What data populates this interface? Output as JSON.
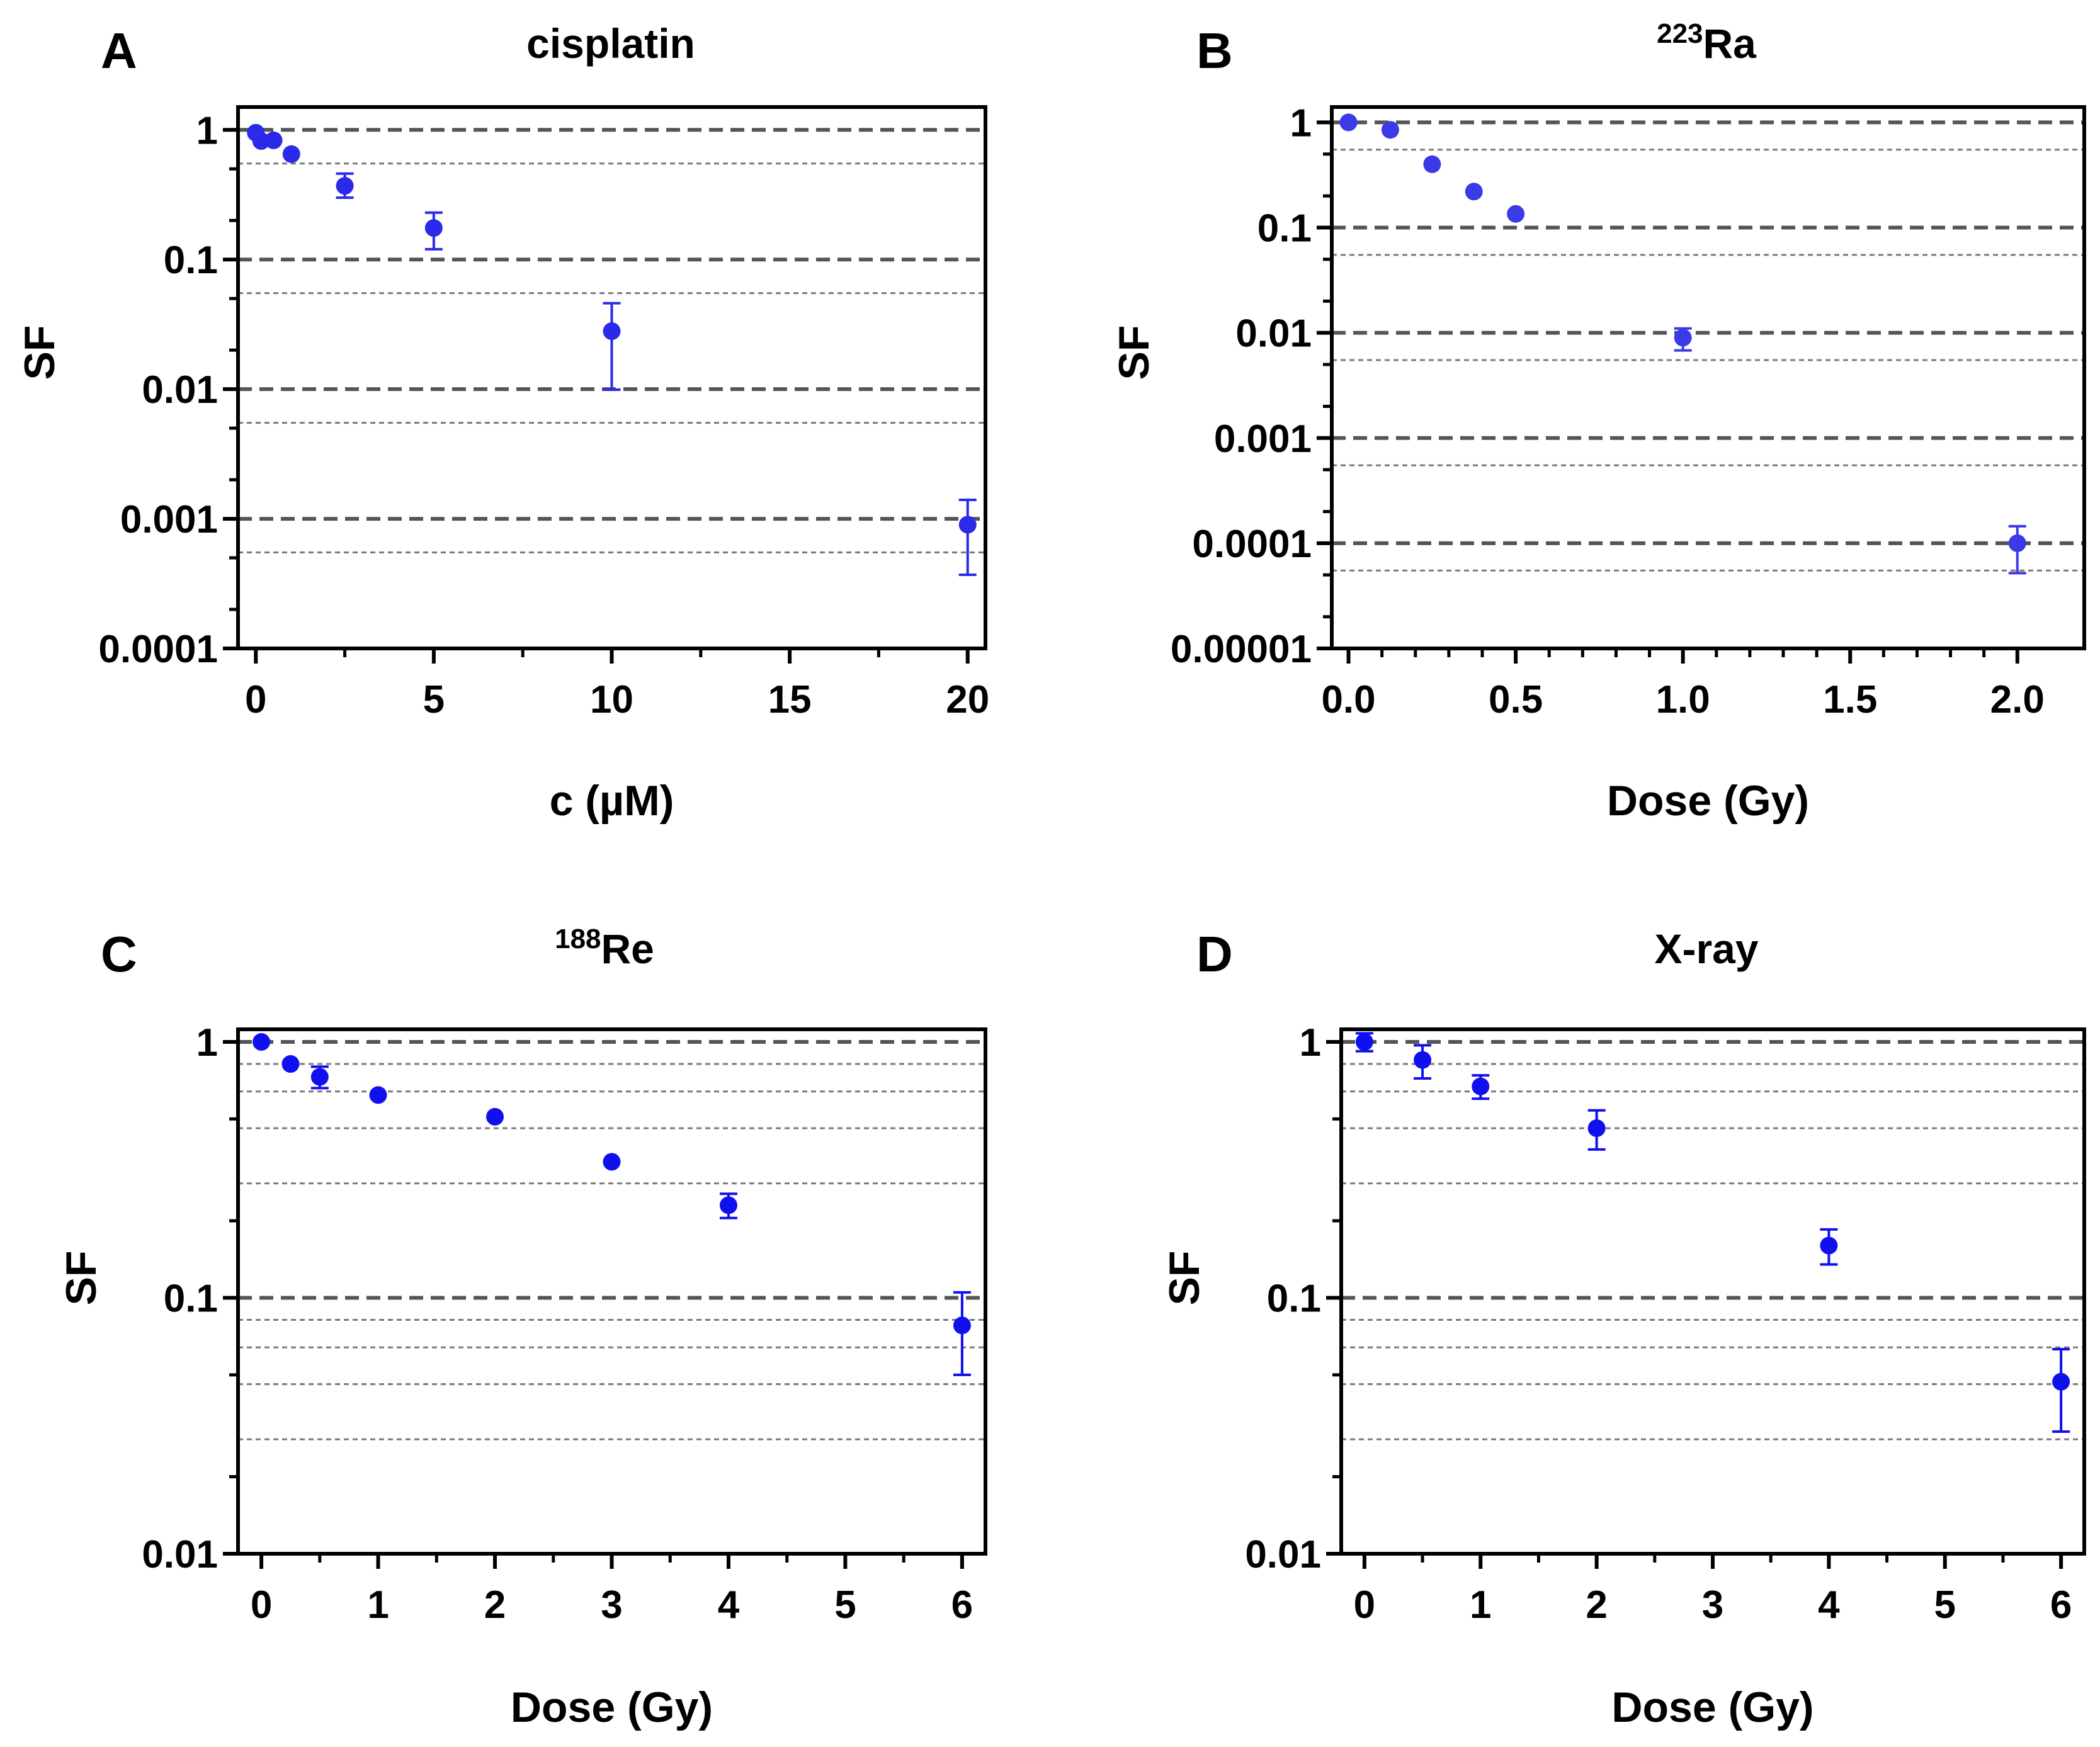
{
  "chart_data": [
    {
      "type": "scatter",
      "panel_letter": "A",
      "title": "cisplatin",
      "title_sup": "",
      "xlabel": "c (µM)",
      "ylabel": "SF",
      "y_scale": "log",
      "xlim": [
        -0.5,
        20.5
      ],
      "ylim": [
        0.0001,
        1.5
      ],
      "xticks": [
        0,
        5,
        10,
        15,
        20
      ],
      "xtick_labels": [
        "0",
        "5",
        "10",
        "15",
        "20"
      ],
      "yticks": [
        1,
        0.1,
        0.01,
        0.001,
        0.0001
      ],
      "ytick_labels": [
        "1",
        "0.1",
        "0.01",
        "0.001",
        "0.0001"
      ],
      "reference_lines": {
        "dashed": [
          1,
          0.1,
          0.01,
          0.001
        ],
        "dotted": [
          0.55,
          0.055,
          0.0055,
          0.00055
        ]
      },
      "marker_color": "#2a2ae8",
      "series": [
        {
          "x": [
            0,
            0.15,
            0.5,
            1,
            2.5,
            5,
            10,
            20
          ],
          "y": [
            0.95,
            0.82,
            0.83,
            0.65,
            0.37,
            0.175,
            0.028,
            0.0009
          ],
          "y_lower": [
            null,
            null,
            null,
            null,
            0.3,
            0.12,
            0.0099,
            0.00037
          ],
          "y_upper": [
            null,
            null,
            null,
            null,
            0.46,
            0.23,
            0.046,
            0.0014
          ]
        }
      ]
    },
    {
      "type": "scatter",
      "panel_letter": "B",
      "title": "Ra",
      "title_sup": "223",
      "xlabel": "Dose (Gy)",
      "ylabel": "SF",
      "y_scale": "log",
      "xlim": [
        -0.05,
        2.2
      ],
      "ylim": [
        1e-05,
        1.4
      ],
      "xticks": [
        0,
        0.5,
        1,
        1.5,
        2
      ],
      "xtick_labels": [
        "0.0",
        "0.5",
        "1.0",
        "1.5",
        "2.0"
      ],
      "yticks": [
        1,
        0.1,
        0.01,
        0.001,
        0.0001,
        1e-05
      ],
      "ytick_labels": [
        "1",
        "0.1",
        "0.01",
        "0.001",
        "0.0001",
        "0.00001"
      ],
      "reference_lines": {
        "dashed": [
          1,
          0.1,
          0.01,
          0.001,
          0.0001
        ],
        "dotted": [
          0.55,
          0.055,
          0.0055,
          0.00055,
          5.5e-05
        ]
      },
      "marker_color": "#3a3ae8",
      "series": [
        {
          "x": [
            0,
            0.125,
            0.25,
            0.375,
            0.5,
            1,
            2
          ],
          "y": [
            1,
            0.85,
            0.4,
            0.22,
            0.135,
            0.009,
            0.0001
          ],
          "y_lower": [
            null,
            null,
            null,
            null,
            null,
            0.0068,
            5.2e-05
          ],
          "y_upper": [
            null,
            null,
            null,
            null,
            null,
            0.011,
            0.000145
          ]
        }
      ]
    },
    {
      "type": "scatter",
      "panel_letter": "C",
      "title": "Re",
      "title_sup": "188",
      "xlabel": "Dose (Gy)",
      "ylabel": "SF",
      "y_scale": "log",
      "xlim": [
        -0.2,
        6.2
      ],
      "ylim": [
        0.01,
        1.12
      ],
      "xticks": [
        0,
        1,
        2,
        3,
        4,
        5,
        6
      ],
      "xtick_labels": [
        "0",
        "1",
        "2",
        "3",
        "4",
        "5",
        "6"
      ],
      "yticks": [
        1,
        0.1,
        0.01
      ],
      "ytick_labels": [
        "1",
        "0.1",
        "0.01"
      ],
      "reference_lines": {
        "dashed": [
          1,
          0.1
        ],
        "dotted": [
          0.82,
          0.64,
          0.46,
          0.28,
          0.082,
          0.064,
          0.046,
          0.028
        ]
      },
      "marker_color": "#1010ee",
      "series": [
        {
          "x": [
            0,
            0.25,
            0.5,
            1,
            2,
            3,
            4,
            6
          ],
          "y": [
            1,
            0.82,
            0.73,
            0.62,
            0.51,
            0.34,
            0.23,
            0.078
          ],
          "y_lower": [
            null,
            null,
            0.66,
            null,
            null,
            null,
            0.205,
            0.05
          ],
          "y_upper": [
            null,
            null,
            0.8,
            null,
            null,
            null,
            0.255,
            0.105
          ]
        }
      ]
    },
    {
      "type": "scatter",
      "panel_letter": "D",
      "title": "X-ray",
      "title_sup": "",
      "xlabel": "Dose (Gy)",
      "ylabel": "SF",
      "y_scale": "log",
      "xlim": [
        -0.2,
        6.2
      ],
      "ylim": [
        0.01,
        1.12
      ],
      "xticks": [
        0,
        1,
        2,
        3,
        4,
        5,
        6
      ],
      "xtick_labels": [
        "0",
        "1",
        "2",
        "3",
        "4",
        "5",
        "6"
      ],
      "yticks": [
        1,
        0.1,
        0.01
      ],
      "ytick_labels": [
        "1",
        "0.1",
        "0.01"
      ],
      "reference_lines": {
        "dashed": [
          1,
          0.1
        ],
        "dotted": [
          0.82,
          0.64,
          0.46,
          0.28,
          0.082,
          0.064,
          0.046,
          0.028
        ]
      },
      "marker_color": "#1010ee",
      "series": [
        {
          "x": [
            0,
            0.5,
            1,
            2,
            4,
            6
          ],
          "y": [
            1,
            0.85,
            0.67,
            0.46,
            0.16,
            0.047
          ],
          "y_lower": [
            0.92,
            0.72,
            0.6,
            0.38,
            0.135,
            0.03
          ],
          "y_upper": [
            1.08,
            0.97,
            0.74,
            0.54,
            0.185,
            0.063
          ]
        }
      ]
    }
  ]
}
